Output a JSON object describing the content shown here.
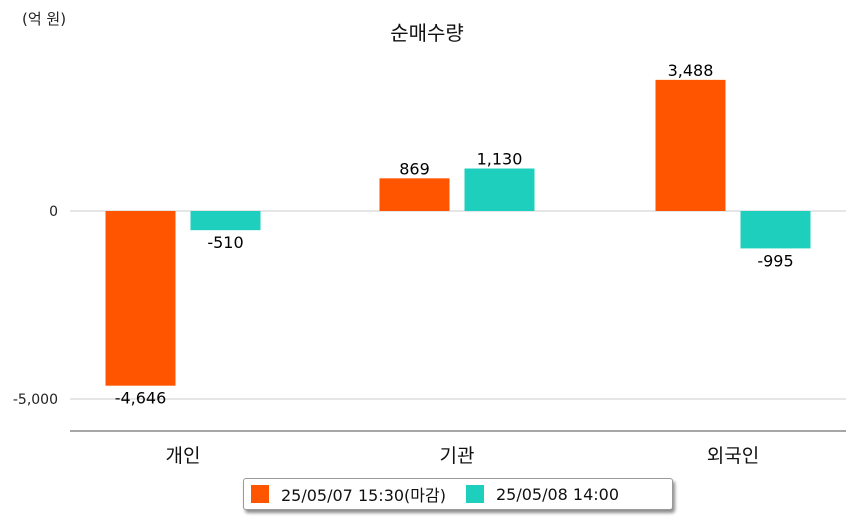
{
  "unit_label": "(억 원)",
  "colors": {
    "series1": "#ff5500",
    "series2": "#1ecfbe",
    "gridline": "#cccccc",
    "axis": "#888888"
  },
  "chart_data": {
    "type": "bar",
    "title": "순매수량",
    "ylabel": "(억 원)",
    "xlabel": "",
    "categories": [
      "개인",
      "기관",
      "외국인"
    ],
    "series": [
      {
        "name": "25/05/07 15:30(마감)",
        "values": [
          -4646,
          869,
          3488
        ]
      },
      {
        "name": "25/05/08 14:00",
        "values": [
          -510,
          1130,
          -995
        ]
      }
    ],
    "value_labels": [
      [
        "-4,646",
        "869",
        "3,488"
      ],
      [
        "-510",
        "1,130",
        "-995"
      ]
    ],
    "y_ticks": [
      {
        "value": 0,
        "label": "0"
      },
      {
        "value": -5000,
        "label": "-5,000"
      }
    ],
    "ylim": [
      -5800,
      3900
    ],
    "grid": true,
    "legend_position": "bottom"
  }
}
